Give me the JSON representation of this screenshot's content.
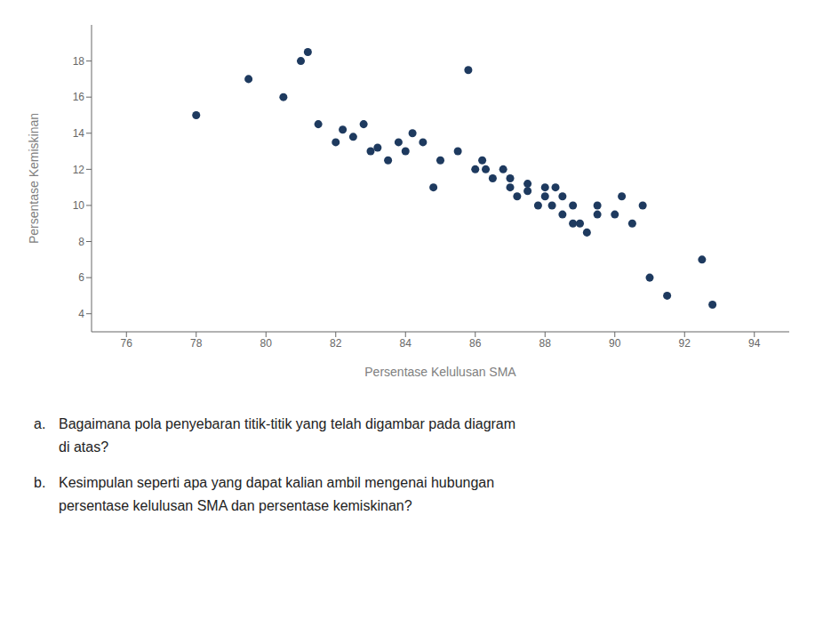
{
  "chart_data": {
    "type": "scatter",
    "xlabel": "Persentase Kelulusan SMA",
    "ylabel": "Persentase Kemiskinan",
    "xlim": [
      75,
      95
    ],
    "ylim": [
      3,
      20
    ],
    "xticks": [
      76,
      78,
      80,
      82,
      84,
      86,
      88,
      90,
      92,
      94
    ],
    "yticks": [
      4,
      6,
      8,
      10,
      12,
      14,
      16,
      18
    ],
    "color": "#1e3a5f",
    "grid": false,
    "x": [
      78.0,
      79.5,
      80.5,
      81.0,
      81.2,
      81.5,
      82.0,
      82.2,
      82.5,
      82.8,
      83.0,
      83.2,
      83.5,
      83.8,
      84.0,
      84.2,
      84.5,
      84.8,
      85.0,
      85.5,
      85.8,
      86.0,
      86.2,
      86.3,
      86.5,
      86.8,
      87.0,
      87.0,
      87.2,
      87.5,
      87.5,
      87.8,
      88.0,
      88.0,
      88.2,
      88.3,
      88.5,
      88.5,
      88.8,
      88.8,
      89.0,
      89.2,
      89.5,
      89.5,
      90.0,
      90.2,
      90.5,
      90.8,
      91.0,
      91.5,
      92.5,
      92.8
    ],
    "values": [
      15.0,
      17.0,
      16.0,
      18.0,
      18.5,
      14.5,
      13.5,
      14.2,
      13.8,
      14.5,
      13.0,
      13.2,
      12.5,
      13.5,
      13.0,
      14.0,
      13.5,
      11.0,
      12.5,
      13.0,
      17.5,
      12.0,
      12.5,
      12.0,
      11.5,
      12.0,
      11.0,
      11.5,
      10.5,
      10.8,
      11.2,
      10.0,
      10.5,
      11.0,
      10.0,
      11.0,
      9.5,
      10.5,
      9.0,
      10.0,
      9.0,
      8.5,
      9.5,
      10.0,
      9.5,
      10.5,
      9.0,
      10.0,
      6.0,
      5.0,
      7.0,
      4.5
    ],
    "annotations": [
      "a.",
      "Bagaimana pola penyebaran titik-titik yang telah digambar pada diagram",
      "di atas?",
      "b.",
      "Kesimpulan seperti apa yang dapat kalian ambil mengenai hubungan",
      "persentase kelulusan SMA dan persentase kemiskinan?"
    ]
  }
}
